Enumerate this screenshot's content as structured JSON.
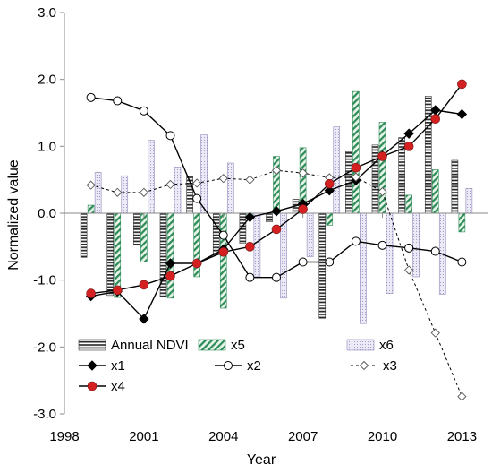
{
  "chart_data": {
    "type": "bar+line",
    "xlabel": "Year",
    "ylabel": "Normalized value",
    "xlim": [
      1998,
      2014
    ],
    "ylim": [
      -3.0,
      3.0
    ],
    "x_ticks": [
      1998,
      2001,
      2004,
      2007,
      2010,
      2013
    ],
    "y_ticks": [
      3.0,
      2.0,
      1.0,
      0.0,
      -1.0,
      -2.0,
      -3.0
    ],
    "y_tick_labels": [
      "3.0",
      "2.0",
      "1.0",
      "0.0",
      "-1.0",
      "-2.0",
      "-3.0"
    ],
    "grid": false,
    "years": [
      1999,
      2000,
      2001,
      2002,
      2003,
      2004,
      2005,
      2006,
      2007,
      2008,
      2009,
      2010,
      2011,
      2012,
      2013
    ],
    "bar_series": [
      {
        "name": "Annual NDVI",
        "pattern": "horizontal-stripes",
        "color": "#222222",
        "values": [
          -0.66,
          -1.23,
          -0.47,
          -1.25,
          0.55,
          -0.62,
          -0.45,
          -0.13,
          0.21,
          -1.57,
          0.92,
          1.02,
          1.13,
          1.75,
          0.79
        ]
      },
      {
        "name": "x5",
        "pattern": "diagonal-green",
        "color": "#2e8b57",
        "values": [
          0.12,
          -1.26,
          -0.73,
          -1.27,
          -0.95,
          -1.42,
          -0.05,
          0.85,
          0.98,
          -0.18,
          1.82,
          1.36,
          0.27,
          0.65,
          -0.28
        ]
      },
      {
        "name": "x6",
        "pattern": "lavender-dots",
        "color": "#8f87b8",
        "values": [
          0.61,
          0.56,
          1.09,
          0.69,
          1.17,
          0.75,
          -0.95,
          -1.27,
          -0.65,
          1.29,
          -1.65,
          -1.2,
          -0.95,
          -1.21,
          0.37
        ]
      }
    ],
    "line_series": [
      {
        "name": "x1",
        "marker": "diamond-filled",
        "line_style": "solid",
        "color": "#000000",
        "values": [
          -1.24,
          -1.17,
          -1.58,
          -0.75,
          -0.75,
          -0.54,
          -0.06,
          0.03,
          0.14,
          0.34,
          0.49,
          0.86,
          1.19,
          1.54,
          1.48
        ]
      },
      {
        "name": "x2",
        "marker": "circle-open",
        "line_style": "solid",
        "color": "#000000",
        "values": [
          1.73,
          1.68,
          1.53,
          1.16,
          0.22,
          -0.33,
          -0.96,
          -0.96,
          -0.73,
          -0.73,
          -0.42,
          -0.48,
          -0.52,
          -0.57,
          -0.73
        ]
      },
      {
        "name": "x3",
        "marker": "diamond-open",
        "line_style": "dashed",
        "color": "#000000",
        "values": [
          0.42,
          0.31,
          0.31,
          0.43,
          0.45,
          0.52,
          0.5,
          0.64,
          0.6,
          0.53,
          0.54,
          0.32,
          -0.85,
          -1.79,
          -2.74
        ]
      },
      {
        "name": "x4",
        "marker": "circle-red",
        "line_style": "solid",
        "color": "#000000",
        "marker_color": "#d42020",
        "values": [
          -1.2,
          -1.15,
          -1.07,
          -0.94,
          -0.75,
          -0.58,
          -0.5,
          -0.24,
          0.06,
          0.44,
          0.68,
          0.85,
          1.0,
          1.41,
          1.93
        ]
      }
    ],
    "legend": {
      "placement": "bottom-left",
      "entries": [
        "Annual NDVI",
        "x5",
        "x6",
        "x1",
        "x2",
        "x3",
        "x4"
      ]
    }
  }
}
